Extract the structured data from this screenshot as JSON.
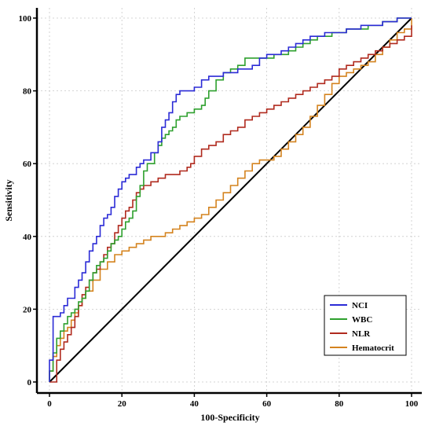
{
  "chart_data": {
    "type": "line",
    "xlabel": "100-Specificity",
    "ylabel": "Sensitivity",
    "xlim": [
      0,
      100
    ],
    "ylim": [
      0,
      100
    ],
    "x_ticks": [
      "0",
      "20",
      "40",
      "60",
      "80",
      "100"
    ],
    "y_ticks": [
      "0",
      "20",
      "40",
      "60",
      "80",
      "100"
    ],
    "grid": true,
    "legend": "bottom-right",
    "reference_line": {
      "x": [
        0,
        100
      ],
      "y": [
        0,
        100
      ],
      "color": "#000000"
    },
    "series": [
      {
        "name": "NCI",
        "color": "#2b2bd6",
        "x": [
          0,
          0,
          1,
          1,
          3,
          4,
          5,
          7,
          8,
          9,
          10,
          11,
          12,
          13,
          14,
          15,
          16,
          17,
          18,
          19,
          20,
          21,
          22,
          23,
          24,
          25,
          26,
          27,
          28,
          30,
          31,
          32,
          33,
          34,
          35,
          36,
          37,
          38,
          40,
          42,
          44,
          46,
          48,
          50,
          52,
          54,
          56,
          58,
          60,
          62,
          64,
          66,
          68,
          70,
          72,
          74,
          76,
          78,
          80,
          82,
          84,
          86,
          88,
          90,
          92,
          94,
          96,
          98,
          100
        ],
        "y": [
          0,
          6,
          12,
          18,
          19,
          21,
          23,
          26,
          28,
          30,
          33,
          36,
          38,
          40,
          43,
          45,
          46,
          48,
          51,
          53,
          55,
          56,
          57,
          57,
          59,
          60,
          61,
          61,
          63,
          66,
          70,
          72,
          74,
          77,
          79,
          80,
          80,
          80,
          81,
          83,
          84,
          84,
          85,
          85,
          86,
          86,
          87,
          89,
          90,
          90,
          91,
          92,
          93,
          94,
          95,
          95,
          96,
          96,
          96,
          97,
          97,
          98,
          98,
          98,
          99,
          99,
          100,
          100,
          100
        ]
      },
      {
        "name": "WBC",
        "color": "#2ea02e",
        "x": [
          0,
          0,
          1,
          2,
          3,
          4,
          5,
          6,
          7,
          8,
          9,
          10,
          11,
          12,
          13,
          14,
          15,
          16,
          17,
          18,
          19,
          20,
          21,
          22,
          23,
          24,
          25,
          26,
          27,
          28,
          29,
          30,
          31,
          32,
          33,
          34,
          35,
          36,
          37,
          38,
          40,
          42,
          43,
          44,
          46,
          48,
          50,
          52,
          54,
          56,
          58,
          60,
          62,
          64,
          66,
          68,
          70,
          72,
          74,
          76,
          78,
          80,
          82,
          84,
          86,
          88,
          90,
          92,
          94,
          96,
          98,
          100
        ],
        "y": [
          0,
          3,
          8,
          12,
          14,
          16,
          18,
          19,
          20,
          22,
          23,
          25,
          28,
          30,
          32,
          33,
          34,
          36,
          38,
          39,
          40,
          42,
          44,
          45,
          47,
          51,
          54,
          58,
          60,
          60,
          63,
          65,
          67,
          68,
          69,
          70,
          72,
          73,
          73,
          74,
          75,
          76,
          78,
          80,
          83,
          85,
          86,
          87,
          89,
          89,
          89,
          89,
          90,
          90,
          91,
          92,
          93,
          94,
          95,
          95,
          96,
          96,
          97,
          97,
          97,
          98,
          98,
          99,
          99,
          100,
          100,
          100
        ]
      },
      {
        "name": "NLR",
        "color": "#b02a1e",
        "x": [
          0,
          1,
          2,
          2,
          3,
          4,
          5,
          6,
          7,
          8,
          9,
          10,
          11,
          12,
          13,
          14,
          15,
          16,
          17,
          18,
          19,
          20,
          21,
          22,
          23,
          24,
          25,
          26,
          28,
          30,
          32,
          34,
          36,
          38,
          39,
          40,
          42,
          44,
          46,
          48,
          50,
          52,
          54,
          56,
          58,
          60,
          62,
          64,
          66,
          68,
          70,
          72,
          74,
          76,
          78,
          80,
          82,
          84,
          86,
          88,
          90,
          92,
          94,
          96,
          98,
          100
        ],
        "y": [
          0,
          0,
          3,
          6,
          9,
          11,
          13,
          15,
          18,
          21,
          24,
          26,
          28,
          30,
          31,
          33,
          35,
          37,
          38,
          41,
          43,
          45,
          47,
          48,
          50,
          52,
          53,
          54,
          55,
          56,
          57,
          57,
          58,
          59,
          60,
          62,
          64,
          65,
          66,
          68,
          69,
          70,
          72,
          73,
          74,
          75,
          76,
          77,
          78,
          79,
          80,
          81,
          82,
          83,
          84,
          86,
          87,
          88,
          89,
          90,
          91,
          92,
          93,
          94,
          95,
          98
        ]
      },
      {
        "name": "Hematocrit",
        "color": "#d4831f",
        "x": [
          0,
          0,
          1,
          2,
          3,
          4,
          5,
          6,
          7,
          8,
          9,
          10,
          12,
          14,
          16,
          18,
          20,
          22,
          24,
          26,
          28,
          30,
          32,
          34,
          36,
          38,
          40,
          42,
          44,
          46,
          48,
          50,
          52,
          54,
          56,
          58,
          60,
          62,
          64,
          66,
          68,
          70,
          72,
          74,
          76,
          78,
          80,
          82,
          84,
          86,
          88,
          90,
          92,
          94,
          96,
          98,
          100
        ],
        "y": [
          0,
          3,
          7,
          10,
          12,
          14,
          15,
          17,
          19,
          21,
          23,
          25,
          28,
          31,
          33,
          35,
          36,
          37,
          38,
          39,
          40,
          40,
          41,
          42,
          43,
          44,
          45,
          46,
          48,
          50,
          52,
          54,
          56,
          58,
          60,
          61,
          61,
          62,
          64,
          66,
          68,
          70,
          73,
          76,
          79,
          82,
          84,
          85,
          86,
          87,
          88,
          90,
          92,
          94,
          96,
          97,
          100
        ]
      }
    ]
  }
}
